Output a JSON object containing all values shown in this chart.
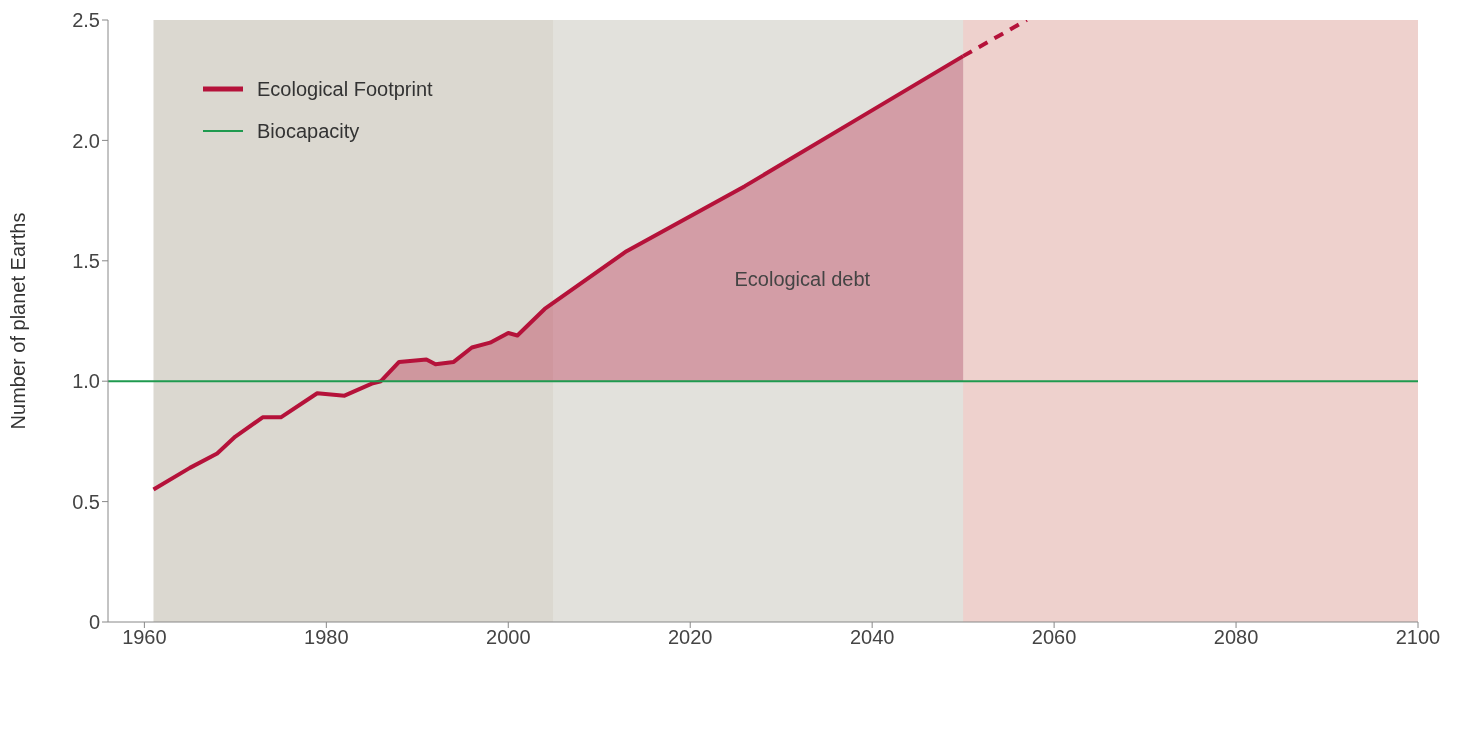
{
  "chart_data": {
    "type": "line",
    "ylabel": "Number of planet Earths",
    "xlim": [
      1956,
      2100
    ],
    "xticks": [
      1960,
      1980,
      2000,
      2020,
      2040,
      2060,
      2080,
      2100
    ],
    "ylim": [
      0,
      2.5
    ],
    "yticks": [
      0,
      {
        "value": 0.5,
        "label": "0.5"
      },
      {
        "value": 1,
        "label": "1.0"
      },
      {
        "value": 1.5,
        "label": "1.5"
      },
      {
        "value": 2,
        "label": "2.0"
      },
      {
        "value": 2.5,
        "label": "2.5"
      }
    ],
    "series": [
      {
        "name": "Ecological Footprint",
        "color": "#b5123a",
        "line_style": "solid",
        "x": [
          1961,
          1965,
          1968,
          1970,
          1973,
          1975,
          1979,
          1982,
          1985,
          1986,
          1988,
          1991,
          1992,
          1994,
          1996,
          1998,
          2000,
          2001,
          2004,
          2013,
          2026,
          2038,
          2050
        ],
        "values": [
          0.55,
          0.64,
          0.7,
          0.77,
          0.85,
          0.85,
          0.95,
          0.94,
          0.99,
          1.0,
          1.08,
          1.09,
          1.07,
          1.08,
          1.14,
          1.16,
          1.2,
          1.19,
          1.3,
          1.54,
          1.81,
          2.08,
          2.35
        ],
        "lower": [
          null,
          null,
          null,
          null,
          null,
          null,
          null,
          null,
          null,
          1,
          1,
          1,
          1,
          1,
          1,
          1,
          1,
          1,
          1,
          1,
          1,
          1,
          1
        ],
        "upper": [
          null,
          null,
          null,
          null,
          null,
          null,
          null,
          null,
          null,
          1.0,
          1.08,
          1.09,
          1.07,
          1.08,
          1.14,
          1.16,
          1.2,
          1.19,
          1.3,
          1.54,
          1.81,
          2.08,
          2.35
        ]
      },
      {
        "color": "#b5123a",
        "line_style": "dashed",
        "x": [
          2050,
          2057
        ],
        "values": [
          2.35,
          2.5
        ]
      },
      {
        "name": "Biocapacity",
        "color": "#1f9a4f",
        "line_style": "solid",
        "x": [
          1956,
          2100
        ],
        "values": [
          1,
          1
        ]
      }
    ],
    "bands": [
      {
        "axis": "x",
        "from": 1961,
        "to": 2005,
        "color": "#dbd8d0"
      },
      {
        "axis": "x",
        "from": 2005,
        "to": 2100,
        "color": "#e2e1dc"
      },
      {
        "axis": "x",
        "from": 2050,
        "to": 2100,
        "color": "#eed1cd"
      }
    ],
    "annotations": [
      "Ecological debt"
    ],
    "legend": "top left"
  }
}
